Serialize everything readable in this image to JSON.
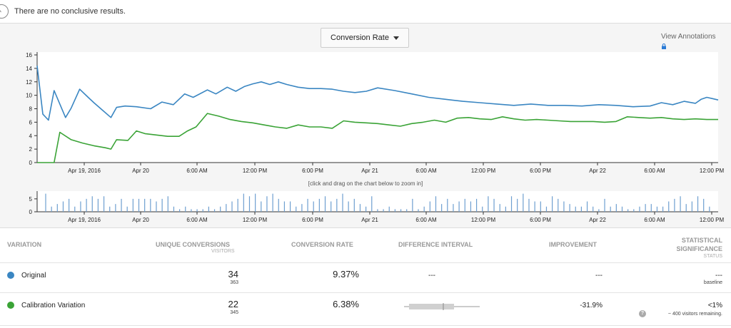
{
  "notice": {
    "message": "There are no conclusive results.",
    "icon": "clock-icon"
  },
  "controls": {
    "metric_label": "Conversion Rate",
    "view_annotations": "View Annotations"
  },
  "zoom_hint": "[click and drag on the chart below to zoom in]",
  "colors": {
    "original": "#3a86c2",
    "variation": "#3aa336",
    "sparkbar": "#6e9fd0"
  },
  "table": {
    "headers": {
      "variation": "VARIATION",
      "unique_conversions": "UNIQUE CONVERSIONS",
      "visitors": "VISITORS",
      "conversion_rate": "CONVERSION RATE",
      "difference_interval": "DIFFERENCE INTERVAL",
      "improvement": "IMPROVEMENT",
      "statistical": "STATISTICAL",
      "significance": "SIGNIFICANCE",
      "status": "STATUS"
    },
    "rows": [
      {
        "name": "Original",
        "conversions": "34",
        "visitors": "363",
        "rate": "9.37%",
        "interval": "---",
        "improvement": "---",
        "significance": "---",
        "status": "baseline"
      },
      {
        "name": "Calibration Variation",
        "conversions": "22",
        "visitors": "345",
        "rate": "6.38%",
        "interval": "",
        "improvement": "-31.9%",
        "significance": "<1%",
        "status": "~ 400 visitors remaining."
      }
    ]
  },
  "chart_data": {
    "type": "line",
    "ylim": [
      0,
      16
    ],
    "yticks": [
      "0",
      "2",
      "4",
      "6",
      "8",
      "10",
      "12",
      "14",
      "16"
    ],
    "x_tick_labels": [
      "Apr 19, 2016",
      "Apr 20",
      "6:00 AM",
      "12:00 PM",
      "6:00 PM",
      "Apr 21",
      "6:00 AM",
      "12:00 PM",
      "6:00 PM",
      "Apr 22",
      "6:00 AM",
      "12:00 PM"
    ],
    "series": [
      {
        "name": "Original",
        "x": [
          0,
          2,
          4,
          6,
          10,
          12,
          15,
          18,
          20,
          23,
          26,
          28,
          31,
          35,
          40,
          44,
          48,
          52,
          55,
          60,
          63,
          67,
          70,
          73,
          76,
          79,
          82,
          85,
          88,
          92,
          96,
          100,
          104,
          108,
          112,
          116,
          120,
          126,
          132,
          138,
          144,
          150,
          156,
          162,
          168,
          174,
          180,
          186,
          192,
          198,
          204,
          210,
          216,
          220,
          224,
          228,
          232,
          234,
          236,
          238,
          240
        ],
        "values": [
          14.4,
          7.2,
          6.3,
          10.7,
          6.7,
          8.1,
          10.9,
          9.7,
          8.9,
          7.8,
          6.7,
          8.2,
          8.4,
          8.3,
          8.0,
          9.0,
          8.6,
          10.2,
          9.7,
          10.8,
          10.2,
          11.2,
          10.6,
          11.3,
          11.7,
          12.0,
          11.6,
          12.0,
          11.6,
          11.2,
          11.0,
          11.0,
          10.9,
          10.6,
          10.4,
          10.6,
          11.1,
          10.7,
          10.2,
          9.7,
          9.4,
          9.1,
          8.9,
          8.7,
          8.5,
          8.7,
          8.5,
          8.5,
          8.4,
          8.6,
          8.5,
          8.3,
          8.4,
          8.9,
          8.6,
          9.1,
          8.8,
          9.4,
          9.7,
          9.5,
          9.3
        ]
      },
      {
        "name": "Calibration Variation",
        "x": [
          0,
          4,
          6,
          8,
          12,
          16,
          20,
          24,
          26,
          28,
          32,
          35,
          38,
          42,
          46,
          50,
          53,
          56,
          60,
          64,
          68,
          72,
          76,
          80,
          84,
          88,
          92,
          96,
          100,
          104,
          108,
          112,
          116,
          120,
          124,
          128,
          132,
          136,
          140,
          144,
          148,
          152,
          156,
          160,
          164,
          168,
          172,
          176,
          180,
          184,
          188,
          192,
          196,
          200,
          204,
          208,
          212,
          216,
          220,
          224,
          228,
          232,
          236,
          240
        ],
        "values": [
          0,
          0,
          0,
          4.5,
          3.4,
          2.9,
          2.5,
          2.2,
          2.0,
          3.4,
          3.3,
          4.7,
          4.3,
          4.1,
          3.9,
          3.9,
          4.7,
          5.3,
          7.3,
          6.9,
          6.4,
          6.1,
          5.9,
          5.6,
          5.3,
          5.1,
          5.6,
          5.3,
          5.3,
          5.1,
          6.2,
          6.0,
          5.9,
          5.8,
          5.6,
          5.4,
          5.8,
          6.0,
          6.3,
          6.0,
          6.6,
          6.7,
          6.5,
          6.4,
          6.8,
          6.5,
          6.3,
          6.4,
          6.3,
          6.2,
          6.1,
          6.1,
          6.1,
          6.0,
          6.1,
          6.8,
          6.7,
          6.6,
          6.7,
          6.5,
          6.4,
          6.5,
          6.4,
          6.4
        ]
      }
    ],
    "volume": {
      "ylim": [
        0,
        8
      ],
      "yticks": [
        "0",
        "5"
      ],
      "bars": [
        7,
        2,
        3,
        4,
        5,
        2,
        4,
        5,
        6,
        5,
        6,
        2,
        3,
        5,
        2,
        5,
        5,
        5,
        5,
        4,
        5,
        6,
        2,
        1,
        2,
        1,
        1,
        1,
        2,
        1,
        2,
        3,
        4,
        5,
        7,
        6,
        7,
        4,
        6,
        7,
        5,
        4,
        4,
        2,
        3,
        5,
        4,
        5,
        6,
        4,
        5,
        7,
        4,
        5,
        3,
        2,
        6,
        1,
        1,
        2,
        1,
        1,
        1,
        5,
        1,
        2,
        4,
        6,
        3,
        5,
        3,
        4,
        5,
        4,
        5,
        2,
        6,
        5,
        3,
        2,
        6,
        5,
        7,
        5,
        4,
        4,
        2,
        6,
        5,
        4,
        3,
        2,
        2,
        4,
        2,
        1,
        5,
        2,
        3,
        2,
        1,
        1,
        2,
        3,
        3,
        2,
        2,
        4,
        5,
        6,
        3,
        4,
        6,
        5,
        2
      ]
    }
  }
}
